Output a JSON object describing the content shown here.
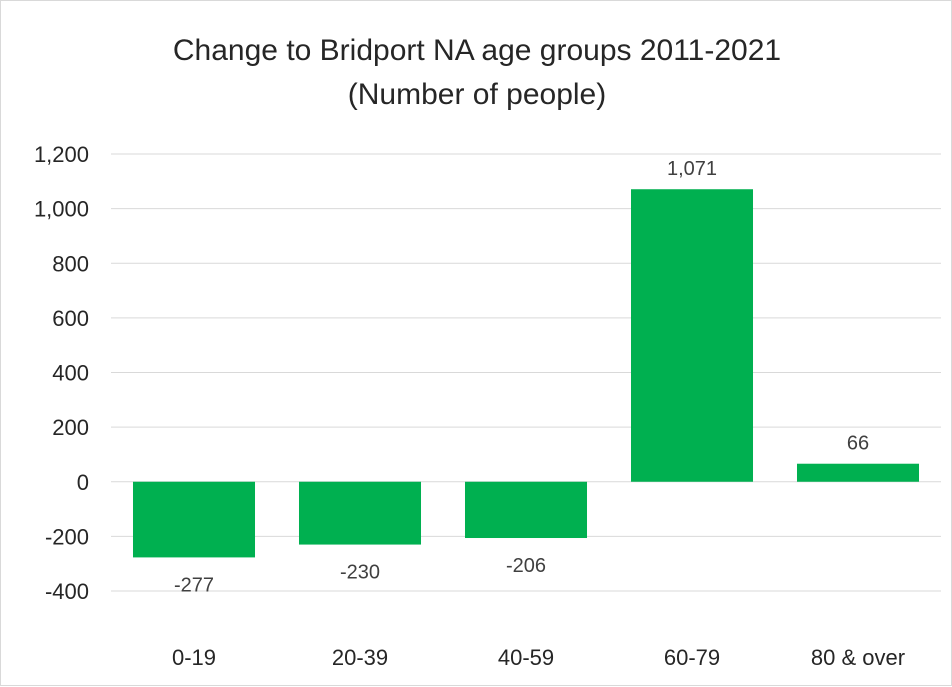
{
  "chart_data": {
    "type": "bar",
    "title_lines": [
      "Change to Bridport NA age groups 2011-2021",
      "(Number of people)"
    ],
    "xlabel": "",
    "ylabel": "",
    "categories": [
      "0-19",
      "20-39",
      "40-59",
      "60-79",
      "80 & over"
    ],
    "values": [
      -277,
      -230,
      -206,
      1071,
      66
    ],
    "data_labels": [
      "-277",
      "-230",
      "-206",
      "1,071",
      "66"
    ],
    "ylim": [
      -400,
      1200
    ],
    "yticks": [
      -400,
      -200,
      0,
      200,
      400,
      600,
      800,
      1000,
      1200
    ],
    "ytick_labels": [
      "-400",
      "-200",
      "0",
      "200",
      "400",
      "600",
      "800",
      "1,000",
      "1,200"
    ],
    "grid": true,
    "legend": "none",
    "bar_color": "#00b050",
    "gridline_color": "#d9d9d9"
  }
}
